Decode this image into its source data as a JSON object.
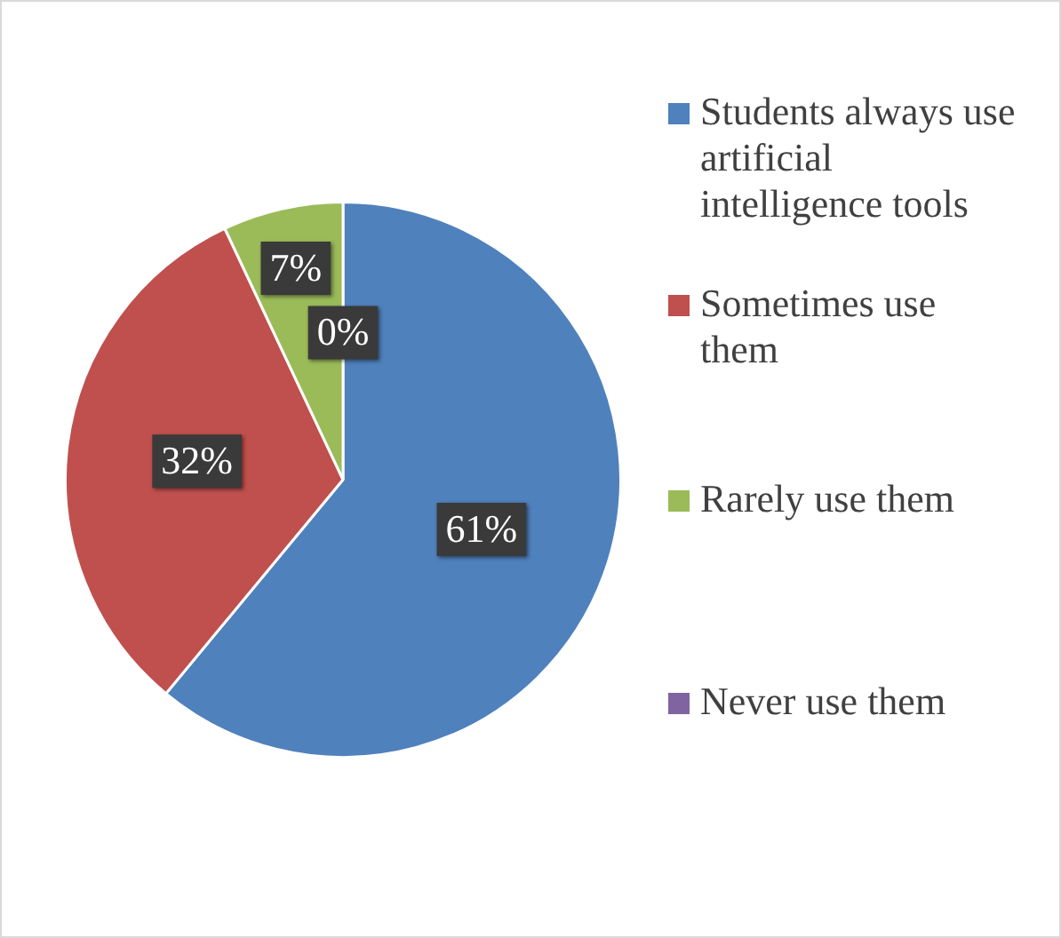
{
  "chart_data": {
    "type": "pie",
    "categories": [
      "Students always use artificial intelligence tools",
      "Sometimes use them",
      "Rarely use them",
      "Never use them"
    ],
    "values": [
      61,
      32,
      7,
      0
    ],
    "colors": [
      "#4f81bd",
      "#c0504d",
      "#9bbb59",
      "#8064a2"
    ],
    "value_labels": [
      "61%",
      "32%",
      "7%",
      "0%"
    ],
    "legend": "right"
  }
}
